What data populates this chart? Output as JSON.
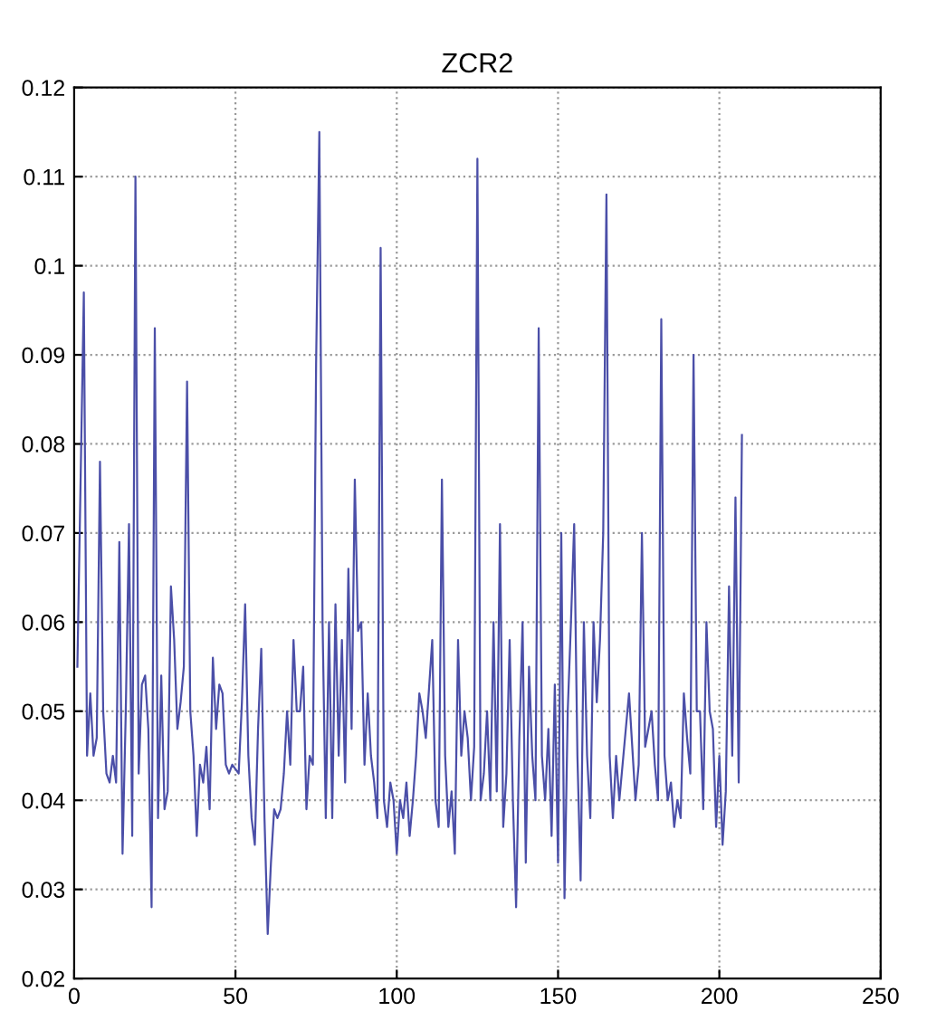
{
  "chart_data": {
    "type": "line",
    "title": "ZCR2",
    "xlim": [
      0,
      250
    ],
    "ylim": [
      0.02,
      0.12
    ],
    "xticks": [
      0,
      50,
      100,
      150,
      200,
      250
    ],
    "yticks": [
      0.02,
      0.03,
      0.04,
      0.05,
      0.06,
      0.07,
      0.08,
      0.09,
      0.1,
      0.11,
      0.12
    ],
    "grid": true,
    "line_style": "solid",
    "marker": "none",
    "series": [
      {
        "color": "#4b4fa8",
        "x": [
          1,
          3,
          4,
          5,
          6,
          7,
          8,
          9,
          10,
          11,
          12,
          13,
          14,
          15,
          16,
          17,
          18,
          19,
          20,
          21,
          22,
          23,
          24,
          25,
          26,
          27,
          28,
          29,
          30,
          31,
          32,
          33,
          34,
          35,
          36,
          37,
          38,
          39,
          40,
          41,
          42,
          43,
          44,
          45,
          46,
          47,
          48,
          49,
          51,
          52,
          53,
          54,
          55,
          56,
          57,
          58,
          59,
          60,
          61,
          62,
          63,
          64,
          65,
          66,
          67,
          68,
          69,
          70,
          71,
          72,
          73,
          74,
          75,
          76,
          77,
          78,
          79,
          80,
          81,
          82,
          83,
          84,
          85,
          86,
          87,
          88,
          89,
          90,
          91,
          92,
          93,
          94,
          95,
          96,
          97,
          98,
          99,
          100,
          101,
          102,
          103,
          104,
          105,
          106,
          107,
          108,
          109,
          111,
          112,
          113,
          114,
          115,
          116,
          117,
          118,
          119,
          120,
          121,
          122,
          123,
          124,
          125,
          126,
          127,
          128,
          129,
          130,
          131,
          132,
          133,
          134,
          135,
          136,
          137,
          138,
          139,
          140,
          141,
          142,
          143,
          144,
          145,
          146,
          147,
          148,
          149,
          150,
          151,
          152,
          153,
          154,
          155,
          156,
          157,
          158,
          159,
          160,
          161,
          162,
          163,
          164,
          165,
          166,
          167,
          168,
          169,
          171,
          172,
          173,
          174,
          175,
          176,
          177,
          178,
          179,
          180,
          181,
          182,
          183,
          184,
          185,
          186,
          187,
          188,
          189,
          190,
          191,
          192,
          193,
          194,
          195,
          196,
          197,
          198,
          199,
          200,
          201,
          202,
          203,
          204,
          205,
          206,
          207
        ],
        "values": [
          0.055,
          0.097,
          0.045,
          0.052,
          0.045,
          0.047,
          0.078,
          0.05,
          0.043,
          0.042,
          0.045,
          0.042,
          0.069,
          0.034,
          0.05,
          0.071,
          0.036,
          0.11,
          0.043,
          0.053,
          0.054,
          0.048,
          0.028,
          0.093,
          0.038,
          0.054,
          0.039,
          0.041,
          0.064,
          0.058,
          0.048,
          0.051,
          0.055,
          0.087,
          0.05,
          0.045,
          0.036,
          0.044,
          0.042,
          0.046,
          0.039,
          0.056,
          0.048,
          0.053,
          0.052,
          0.044,
          0.043,
          0.044,
          0.043,
          0.051,
          0.062,
          0.045,
          0.038,
          0.035,
          0.048,
          0.057,
          0.038,
          0.025,
          0.033,
          0.039,
          0.038,
          0.039,
          0.043,
          0.05,
          0.044,
          0.058,
          0.05,
          0.05,
          0.055,
          0.039,
          0.045,
          0.044,
          0.089,
          0.115,
          0.06,
          0.038,
          0.06,
          0.038,
          0.062,
          0.045,
          0.058,
          0.042,
          0.066,
          0.048,
          0.076,
          0.059,
          0.06,
          0.044,
          0.052,
          0.045,
          0.042,
          0.038,
          0.102,
          0.04,
          0.037,
          0.042,
          0.04,
          0.034,
          0.04,
          0.038,
          0.042,
          0.036,
          0.04,
          0.045,
          0.052,
          0.05,
          0.047,
          0.058,
          0.04,
          0.037,
          0.076,
          0.045,
          0.037,
          0.041,
          0.034,
          0.058,
          0.045,
          0.05,
          0.047,
          0.04,
          0.046,
          0.112,
          0.04,
          0.043,
          0.05,
          0.04,
          0.06,
          0.041,
          0.071,
          0.037,
          0.043,
          0.058,
          0.04,
          0.028,
          0.047,
          0.06,
          0.033,
          0.055,
          0.045,
          0.04,
          0.093,
          0.045,
          0.04,
          0.048,
          0.036,
          0.053,
          0.033,
          0.07,
          0.029,
          0.05,
          0.06,
          0.071,
          0.045,
          0.031,
          0.06,
          0.045,
          0.038,
          0.06,
          0.051,
          0.058,
          0.07,
          0.108,
          0.045,
          0.038,
          0.045,
          0.04,
          0.048,
          0.052,
          0.046,
          0.04,
          0.044,
          0.07,
          0.046,
          0.048,
          0.05,
          0.044,
          0.04,
          0.094,
          0.045,
          0.04,
          0.042,
          0.037,
          0.04,
          0.038,
          0.052,
          0.047,
          0.043,
          0.09,
          0.05,
          0.05,
          0.039,
          0.06,
          0.05,
          0.048,
          0.037,
          0.045,
          0.035,
          0.041,
          0.064,
          0.045,
          0.074,
          0.042,
          0.081
        ]
      }
    ]
  }
}
